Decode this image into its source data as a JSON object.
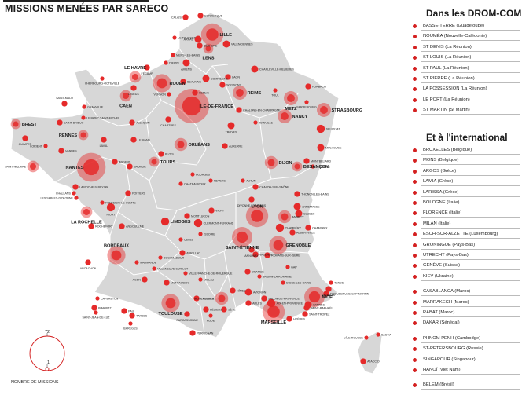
{
  "title": "MISSIONS MENÉES PAR SARECO",
  "legend": {
    "max": "72",
    "min": "1",
    "label": "NOMBRE DE MISSIONS"
  },
  "colors": {
    "marker": "#d42020",
    "marker_fill": "#e52a2a",
    "land": "#d7d7d7",
    "border": "#ffffff",
    "text": "#222222"
  },
  "drom_heading": "Dans les DROM-COM",
  "drom": [
    "BASSE-TERRE (Guadeloupe)",
    "NOUMÉA (Nouvelle-Calédonie)",
    "ST DENIS (La Réunion)",
    "ST LOUIS (La Réunion)",
    "ST PAUL (La Réunion)",
    "ST PIERRE (La Réunion)",
    "LA POSSESSION (La Réunion)",
    "LE PORT (La Réunion)",
    "ST MARTIN (St Martin)"
  ],
  "intl_heading": "Et à l'international",
  "intl": [
    "BRUXELLES (Belgique)",
    "MONS (Belgique)",
    "ARGOS (Grèce)",
    "LAMIA (Grèce)",
    "LARISSA (Grèce)",
    "BOLOGNE (Italie)",
    "FLORENCE (Italie)",
    "MILAN (Italie)",
    "ESCH-SUR-ALZETTE (Luxembourg)",
    "GRONINGUE (Pays-Bas)",
    "UTRECHT (Pays-Bas)",
    "GENÈVE (Suisse)",
    "KIEV (Ukraine)",
    "CASABLANCA (Maroc)",
    "MARRAKECH (Maroc)",
    "RABAT (Maroc)",
    "DAKAR (Sénégal)",
    "PHNOM PENH (Cambodge)",
    "ST-PÉTERSBOURG (Russie)",
    "SINGAPOUR (Singapour)",
    "HANOÏ (Viet Nam)",
    "BELÉM (Brésil)"
  ],
  "cities": [
    {
      "name": "LILLE",
      "missions": 30
    },
    {
      "name": "CALAIS",
      "missions": 2
    },
    {
      "name": "DUNKERQUE",
      "missions": 2
    },
    {
      "name": "VALENCIENNES",
      "missions": 3
    },
    {
      "name": "BÉTHUNE",
      "missions": 2
    },
    {
      "name": "LENS",
      "missions": 6
    },
    {
      "name": "ARRAS",
      "missions": 3
    },
    {
      "name": "LE TOUQUET",
      "missions": 1
    },
    {
      "name": "AMIENS",
      "missions": 3
    },
    {
      "name": "MERS-LES-BAINS",
      "missions": 1
    },
    {
      "name": "DIEPPE",
      "missions": 1
    },
    {
      "name": "LE HAVRE",
      "missions": 8
    },
    {
      "name": "FÉCAMP",
      "missions": 2
    },
    {
      "name": "ROUEN",
      "missions": 20
    },
    {
      "name": "LISIEUX",
      "missions": 2
    },
    {
      "name": "CAEN",
      "missions": 8
    },
    {
      "name": "CHERBOURG-OCTEVILLE",
      "missions": 1
    },
    {
      "name": "BEAUVAIS",
      "missions": 2
    },
    {
      "name": "COMPIÈGNE",
      "missions": 3
    },
    {
      "name": "LAON",
      "missions": 2
    },
    {
      "name": "SOISSONS",
      "missions": 2
    },
    {
      "name": "REIMS",
      "missions": 12
    },
    {
      "name": "CHARLEVILLE-MÉZIÈRES",
      "missions": 3
    },
    {
      "name": "VERNON",
      "missions": 1
    },
    {
      "name": "SENLIS",
      "missions": 2
    },
    {
      "name": "ÎLE-DE-FRANCE",
      "missions": 72
    },
    {
      "name": "CHÂLONS-EN-CHAMPAGNE",
      "missions": 2
    },
    {
      "name": "TOUL",
      "missions": 1
    },
    {
      "name": "METZ",
      "missions": 12
    },
    {
      "name": "FORBACH",
      "missions": 2
    },
    {
      "name": "SARREBOURG",
      "missions": 1
    },
    {
      "name": "STRASBOURG",
      "missions": 12
    },
    {
      "name": "NANCY",
      "missions": 12
    },
    {
      "name": "SAINT-MALO",
      "missions": 2
    },
    {
      "name": "GRANVILLE",
      "missions": 1
    },
    {
      "name": "LE MONT-SAINT-MICHEL",
      "missions": 1
    },
    {
      "name": "ALENÇON",
      "missions": 2
    },
    {
      "name": "BREST",
      "missions": 6
    },
    {
      "name": "SAINT-BRIEUC",
      "missions": 2
    },
    {
      "name": "RENNES",
      "missions": 6
    },
    {
      "name": "QUIMPER",
      "missions": 2
    },
    {
      "name": "LORIENT",
      "missions": 1
    },
    {
      "name": "VANNES",
      "missions": 2
    },
    {
      "name": "LAVAL",
      "missions": 2
    },
    {
      "name": "LE MANS",
      "missions": 2
    },
    {
      "name": "CHARTRES",
      "missions": 2
    },
    {
      "name": "TROYES",
      "missions": 3
    },
    {
      "name": "JOINVILLE",
      "missions": 1
    },
    {
      "name": "SÉLESTAT",
      "missions": 4
    },
    {
      "name": "ORLÉANS",
      "missions": 10
    },
    {
      "name": "AUXERRE",
      "missions": 2
    },
    {
      "name": "DIJON",
      "missions": 10
    },
    {
      "name": "BESANÇON",
      "missions": 6
    },
    {
      "name": "MULHOUSE",
      "missions": 3
    },
    {
      "name": "MONTBÉLIARD",
      "missions": 2
    },
    {
      "name": "SOCHAUX",
      "missions": 1
    },
    {
      "name": "SAINT-NAZAIRE",
      "missions": 8
    },
    {
      "name": "NANTES",
      "missions": 50
    },
    {
      "name": "ANGERS",
      "missions": 2
    },
    {
      "name": "TOURS",
      "missions": 6
    },
    {
      "name": "BLOIS",
      "missions": 2
    },
    {
      "name": "SAUMUR",
      "missions": 2
    },
    {
      "name": "BOURGES",
      "missions": 1
    },
    {
      "name": "NEVERS",
      "missions": 1
    },
    {
      "name": "AUTUN",
      "missions": 1
    },
    {
      "name": "CHÂTEAUROUX",
      "missions": 1
    },
    {
      "name": "CHALON-SUR-SAÔNE",
      "missions": 2
    },
    {
      "name": "LA ROCHE-SUR-YON",
      "missions": 2
    },
    {
      "name": "CHALLANS",
      "missions": 1
    },
    {
      "name": "LES SABLES-D'OLONNE",
      "missions": 1
    },
    {
      "name": "FONTENAY-LE-COMTE",
      "missions": 1
    },
    {
      "name": "POITIERS",
      "missions": 2
    },
    {
      "name": "NIORT",
      "missions": 4
    },
    {
      "name": "LA ROCHELLE",
      "missions": 8
    },
    {
      "name": "ROCHEFORT",
      "missions": 2
    },
    {
      "name": "ANGOULÊME",
      "missions": 2
    },
    {
      "name": "LIMOGES",
      "missions": 4
    },
    {
      "name": "THONON-LES-BAINS",
      "missions": 2
    },
    {
      "name": "DIVONNE-LES-BAINS",
      "missions": 2
    },
    {
      "name": "ANNEMASSE",
      "missions": 3
    },
    {
      "name": "CLUSES",
      "missions": 3
    },
    {
      "name": "MONTLUÇON",
      "missions": 2
    },
    {
      "name": "VICHY",
      "missions": 2
    },
    {
      "name": "CLERMONT-FERRAND",
      "missions": 4
    },
    {
      "name": "LYON",
      "missions": 30
    },
    {
      "name": "ANNECY",
      "missions": 10
    },
    {
      "name": "CHAMBÉRY",
      "missions": 4
    },
    {
      "name": "ALBERTVILLE",
      "missions": 2
    },
    {
      "name": "CHAMONIX",
      "missions": 2
    },
    {
      "name": "BORDEAUX",
      "missions": 20
    },
    {
      "name": "ARCACHON",
      "missions": 2
    },
    {
      "name": "SAINT-ÉTIENNE",
      "missions": 25
    },
    {
      "name": "ANNONAY",
      "missions": 2
    },
    {
      "name": "GRENOBLE",
      "missions": 20
    },
    {
      "name": "VALENCE",
      "missions": 2
    },
    {
      "name": "ROMANS-SUR-ISÈRE",
      "missions": 2
    },
    {
      "name": "ISSOIRE",
      "missions": 1
    },
    {
      "name": "USSEL",
      "missions": 1
    },
    {
      "name": "AURILLAC",
      "missions": 2
    },
    {
      "name": "BOCAMADOUR",
      "missions": 1
    },
    {
      "name": "MARMANDE",
      "missions": 1
    },
    {
      "name": "VILLENEUVE-SUR-LOT",
      "missions": 1
    },
    {
      "name": "AGEN",
      "missions": 2
    },
    {
      "name": "MILLAU",
      "missions": 1
    },
    {
      "name": "VILLEFRANCHE-DE-ROUERGUE",
      "missions": 1
    },
    {
      "name": "MONTAUBAN",
      "missions": 2
    },
    {
      "name": "ORANGE",
      "missions": 2
    },
    {
      "name": "VAISON-LA-ROMAINE",
      "missions": 1
    },
    {
      "name": "GAP",
      "missions": 1
    },
    {
      "name": "DIGNE-LES-BAINS",
      "missions": 1
    },
    {
      "name": "NICE",
      "missions": 25
    },
    {
      "name": "TENDE",
      "missions": 1
    },
    {
      "name": "MENTON",
      "missions": 2
    },
    {
      "name": "ROQUEBRUNE-CAP-MARTIN",
      "missions": 2
    },
    {
      "name": "CANNES",
      "missions": 3
    },
    {
      "name": "SAINT-RAPHAËL",
      "missions": 2
    },
    {
      "name": "SAINT-TROPEZ",
      "missions": 2
    },
    {
      "name": "HYÈRES",
      "missions": 2
    },
    {
      "name": "MARSEILLE",
      "missions": 30
    },
    {
      "name": "AIX-EN-PROVENCE",
      "missions": 4
    },
    {
      "name": "SALON-DE-PROVENCE",
      "missions": 2
    },
    {
      "name": "NÎMES",
      "missions": 2
    },
    {
      "name": "ARLES",
      "missions": 2
    },
    {
      "name": "AVIGNON",
      "missions": 3
    },
    {
      "name": "MONTPELLIER",
      "missions": 10
    },
    {
      "name": "SÈTE",
      "missions": 2
    },
    {
      "name": "BÉZIERS",
      "missions": 2
    },
    {
      "name": "AGDE",
      "missions": 1
    },
    {
      "name": "TOULOUSE",
      "missions": 20
    },
    {
      "name": "CASTRES",
      "missions": 2
    },
    {
      "name": "CARCASSONNE",
      "missions": 2
    },
    {
      "name": "PERPIGNAN",
      "missions": 2
    },
    {
      "name": "CAPBRETON",
      "missions": 1
    },
    {
      "name": "BIARRITZ",
      "missions": 2
    },
    {
      "name": "SAINT-JEAN-DE-LUZ",
      "missions": 1
    },
    {
      "name": "PAU",
      "missions": 2
    },
    {
      "name": "TARBES",
      "missions": 2
    },
    {
      "name": "BARÈGES",
      "missions": 1
    },
    {
      "name": "BASTIA",
      "missions": 1
    },
    {
      "name": "L'ÎLE-ROUSSE",
      "missions": 1
    },
    {
      "name": "AJACCIO",
      "missions": 2
    }
  ]
}
